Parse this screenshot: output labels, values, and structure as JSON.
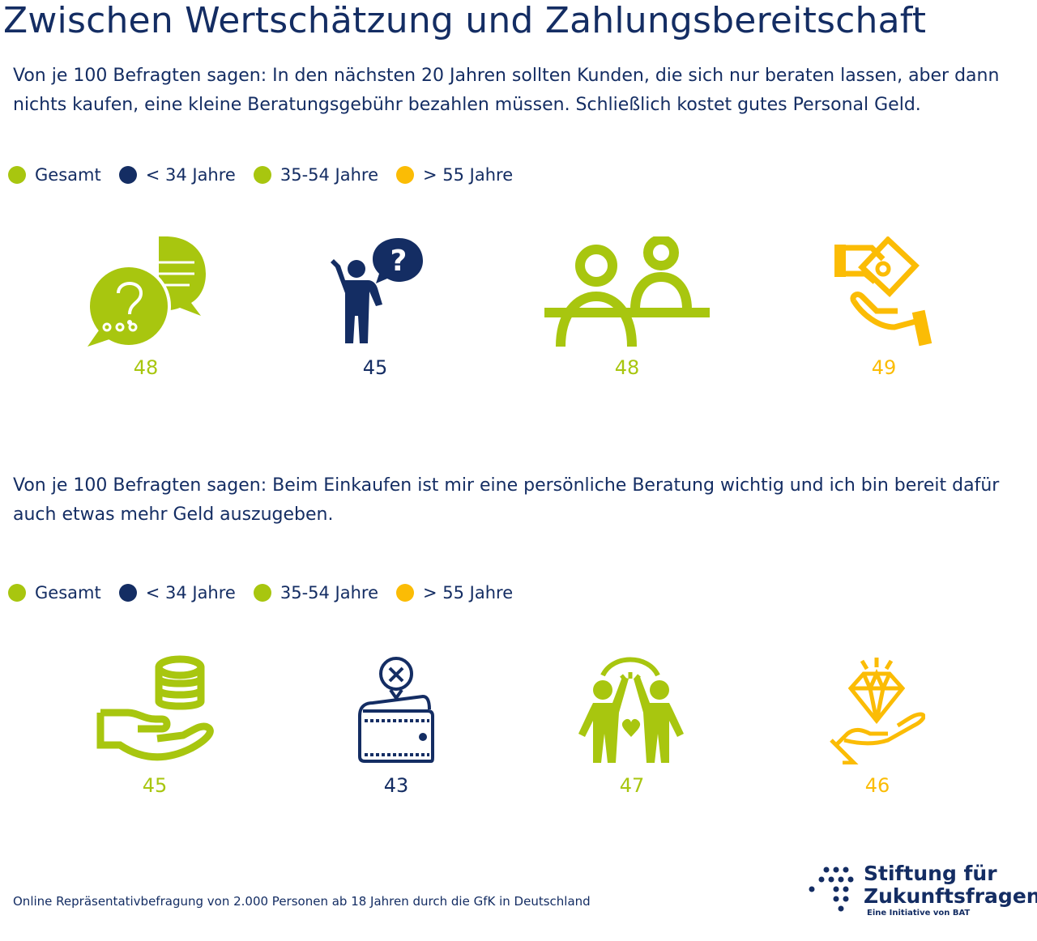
{
  "title": "Zwischen Wertschätzung und Zahlungsbereitschaft",
  "colors": {
    "navy": "#142d63",
    "green": "#a8c60f",
    "yellow": "#fbbc05"
  },
  "section1": {
    "question": "Von je 100 Befragten sagen: In den nächsten 20 Jahren sollten Kunden, die sich nur beraten lassen, aber dann nichts kaufen, eine kleine Beratungsgebühr bezahlen müssen. Schließlich kostet gutes Personal Geld.",
    "legend": [
      {
        "label": "Gesamt",
        "color": "#a8c60f"
      },
      {
        "label": "< 34 Jahre",
        "color": "#142d63"
      },
      {
        "label": "35-54 Jahre",
        "color": "#a8c60f"
      },
      {
        "label": "> 55 Jahre",
        "color": "#fbbc05"
      }
    ],
    "items": [
      {
        "icon": "speech-bubbles-question-icon",
        "value": "48"
      },
      {
        "icon": "person-question-icon",
        "value": "45"
      },
      {
        "icon": "two-people-table-icon",
        "value": "48"
      },
      {
        "icon": "hand-receiving-money-icon",
        "value": "49"
      }
    ]
  },
  "section2": {
    "question": "Von je 100 Befragten sagen: Beim Einkaufen ist mir eine persönliche Beratung wichtig und ich bin bereit dafür auch etwas mehr Geld auszugeben.",
    "legend": [
      {
        "label": "Gesamt",
        "color": "#a8c60f"
      },
      {
        "label": "< 34 Jahre",
        "color": "#142d63"
      },
      {
        "label": "35-54 Jahre",
        "color": "#a8c60f"
      },
      {
        "label": "> 55 Jahre",
        "color": "#fbbc05"
      }
    ],
    "items": [
      {
        "icon": "hand-coins-icon",
        "value": "45"
      },
      {
        "icon": "empty-wallet-icon",
        "value": "43"
      },
      {
        "icon": "high-five-heart-icon",
        "value": "47"
      },
      {
        "icon": "hand-diamond-icon",
        "value": "46"
      }
    ]
  },
  "footnote": "Online Repräsentativbefragung von 2.000 Personen ab 18 Jahren durch die GfK in Deutschland",
  "logo": {
    "line1": "Stiftung für",
    "line2": "Zukunftsfragen",
    "sub": "Eine Initiative von BAT"
  }
}
